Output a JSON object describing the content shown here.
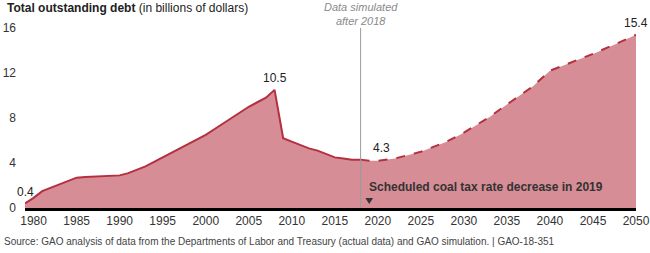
{
  "chart_data": {
    "type": "area",
    "title": "Total outstanding debt",
    "subtitle": "(in billions of dollars)",
    "series": [
      {
        "line_style": "solid",
        "color": "#b5303f",
        "x": [
          1979,
          1980,
          1981,
          1982,
          1983,
          1984,
          1985,
          1986,
          1987,
          1988,
          1989,
          1990,
          1991,
          1992,
          1993,
          1994,
          1995,
          1996,
          1997,
          1998,
          1999,
          2000,
          2001,
          2002,
          2003,
          2004,
          2005,
          2006,
          2007,
          2008,
          2009,
          2010,
          2011,
          2012,
          2013,
          2014,
          2015,
          2016,
          2017,
          2018
        ],
        "values": [
          0.4,
          0.9,
          1.5,
          1.8,
          2.1,
          2.4,
          2.7,
          2.75,
          2.8,
          2.85,
          2.9,
          2.9,
          3.1,
          3.4,
          3.7,
          4.1,
          4.5,
          4.9,
          5.3,
          5.7,
          6.1,
          6.5,
          7.0,
          7.5,
          8.0,
          8.5,
          9.0,
          9.4,
          9.8,
          10.5,
          6.2,
          5.9,
          5.6,
          5.3,
          5.1,
          4.8,
          4.5,
          4.4,
          4.3,
          4.3
        ]
      },
      {
        "line_style": "dashed",
        "color": "#b5303f",
        "x": [
          2018,
          2019,
          2020,
          2022,
          2025,
          2028,
          2030,
          2033,
          2035,
          2038,
          2040,
          2042,
          2045,
          2048,
          2050
        ],
        "values": [
          4.3,
          4.2,
          4.2,
          4.4,
          5.0,
          5.9,
          6.7,
          8.1,
          9.2,
          10.8,
          12.2,
          12.8,
          13.7,
          14.7,
          15.4
        ]
      }
    ],
    "xlim": [
      1979,
      2050
    ],
    "xticks": [
      1980,
      1985,
      1990,
      1995,
      2000,
      2005,
      2010,
      2015,
      2020,
      2025,
      2030,
      2035,
      2040,
      2045,
      2050
    ],
    "ylim": [
      0,
      16
    ],
    "yticks": [
      0,
      4,
      8,
      12,
      16
    ],
    "grid": false,
    "annotations": [
      {
        "text": "0.4",
        "x": 1979,
        "y": 0.4
      },
      {
        "text": "10.5",
        "x": 2008,
        "y": 10.5
      },
      {
        "text": "4.3",
        "x": 2018,
        "y": 4.3
      },
      {
        "text": "15.4",
        "x": 2050,
        "y": 15.4
      }
    ],
    "vline": {
      "x": 2018,
      "label": [
        "Data simulated",
        "after 2018"
      ]
    },
    "event": {
      "x": 2019,
      "label": "Scheduled coal tax rate decrease in 2019"
    },
    "source": "Source: GAO analysis of data from the Departments of Labor and Treasury (actual data) and GAO simulation. | GAO-18-351"
  }
}
